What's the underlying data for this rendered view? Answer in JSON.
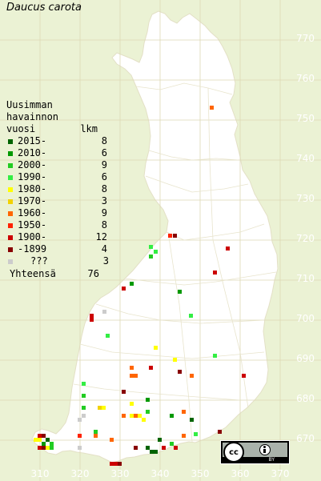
{
  "title": "Daucus carota",
  "legend": {
    "header_line1": "Uusimman",
    "header_line2": "havainnon",
    "header_col1": "vuosi",
    "header_col2": "lkm",
    "items": [
      {
        "label": "2015-",
        "count": "8",
        "color": "#006400"
      },
      {
        "label": "2010-",
        "count": "6",
        "color": "#009900"
      },
      {
        "label": "2000-",
        "count": "9",
        "color": "#22cc22"
      },
      {
        "label": "1990-",
        "count": "6",
        "color": "#33ee44"
      },
      {
        "label": "1980-",
        "count": "8",
        "color": "#ffff00"
      },
      {
        "label": "1970-",
        "count": "3",
        "color": "#f2d200"
      },
      {
        "label": "1960-",
        "count": "9",
        "color": "#ff6600"
      },
      {
        "label": "1950-",
        "count": "8",
        "color": "#ff2200"
      },
      {
        "label": "1900-",
        "count": "12",
        "color": "#cc0000"
      },
      {
        "label": "-1899",
        "count": "4",
        "color": "#880000"
      },
      {
        "label": "???",
        "count": "3",
        "color": "#cccccc"
      }
    ],
    "total_label": "Yhteensä",
    "total_count": "76"
  },
  "y_axis_labels": [
    "770",
    "760",
    "750",
    "740",
    "730",
    "720",
    "710",
    "700",
    "690",
    "680",
    "670"
  ],
  "x_axis_labels": [
    "310",
    "320",
    "330",
    "340",
    "350",
    "360",
    "370"
  ],
  "license_badge": {
    "text": "BY",
    "icon": "cc-by-icon"
  },
  "colors": {
    "background": "#ebf2d4",
    "land": "#ffffff",
    "grid": "#dcd8b8",
    "labels": "#ffffff"
  }
}
